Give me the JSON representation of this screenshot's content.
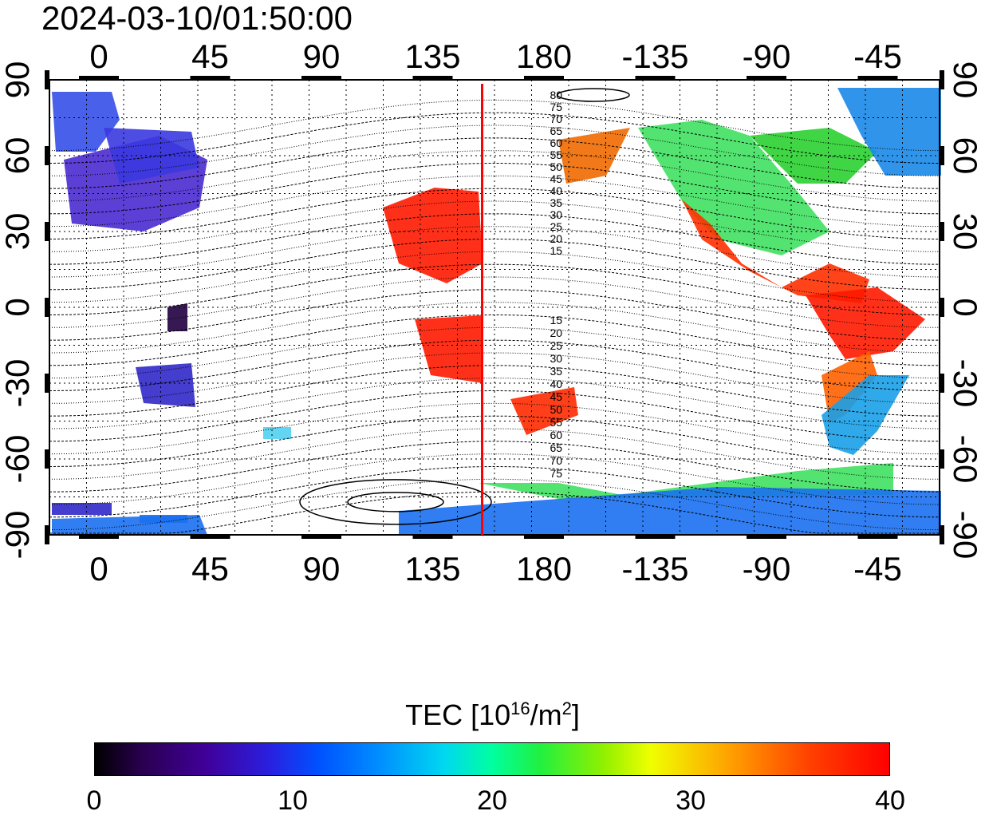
{
  "timestamp": "2024-03-10/01:50:00",
  "x_axis": {
    "ticks": [
      "0",
      "45",
      "90",
      "135",
      "180",
      "-135",
      "-90",
      "-45"
    ],
    "tick_longitudes": [
      0,
      45,
      90,
      135,
      180,
      225,
      270,
      315
    ]
  },
  "y_axis": {
    "ticks": [
      "90",
      "60",
      "30",
      "0",
      "-30",
      "-60",
      "-90"
    ],
    "tick_latitudes": [
      90,
      60,
      30,
      0,
      -30,
      -60,
      -90
    ]
  },
  "map": {
    "lon_range": [
      -20,
      340
    ],
    "lat_range": [
      -90,
      90
    ],
    "grid": true,
    "terminator_line_color": "#ff0000",
    "terminator_longitude": 155,
    "contour_labels_north": [
      "80",
      "75",
      "70",
      "65",
      "60",
      "55",
      "50",
      "45",
      "40",
      "35",
      "30",
      "25",
      "20",
      "15"
    ],
    "contour_labels_south": [
      "15",
      "20",
      "25",
      "30",
      "35",
      "40",
      "45",
      "50",
      "55",
      "60",
      "65",
      "70",
      "75"
    ]
  },
  "colorbar": {
    "title_prefix": "TEC  [10",
    "title_exp": "16",
    "title_mid": "/m",
    "title_exp2": "2",
    "title_suffix": "]",
    "min": 0,
    "max": 40,
    "labels": [
      "0",
      "10",
      "20",
      "30",
      "40"
    ],
    "stops": [
      "#000000",
      "#40009a",
      "#0050ff",
      "#00d8f0",
      "#20f040",
      "#f0ff00",
      "#ff4000",
      "#ff0000"
    ]
  }
}
